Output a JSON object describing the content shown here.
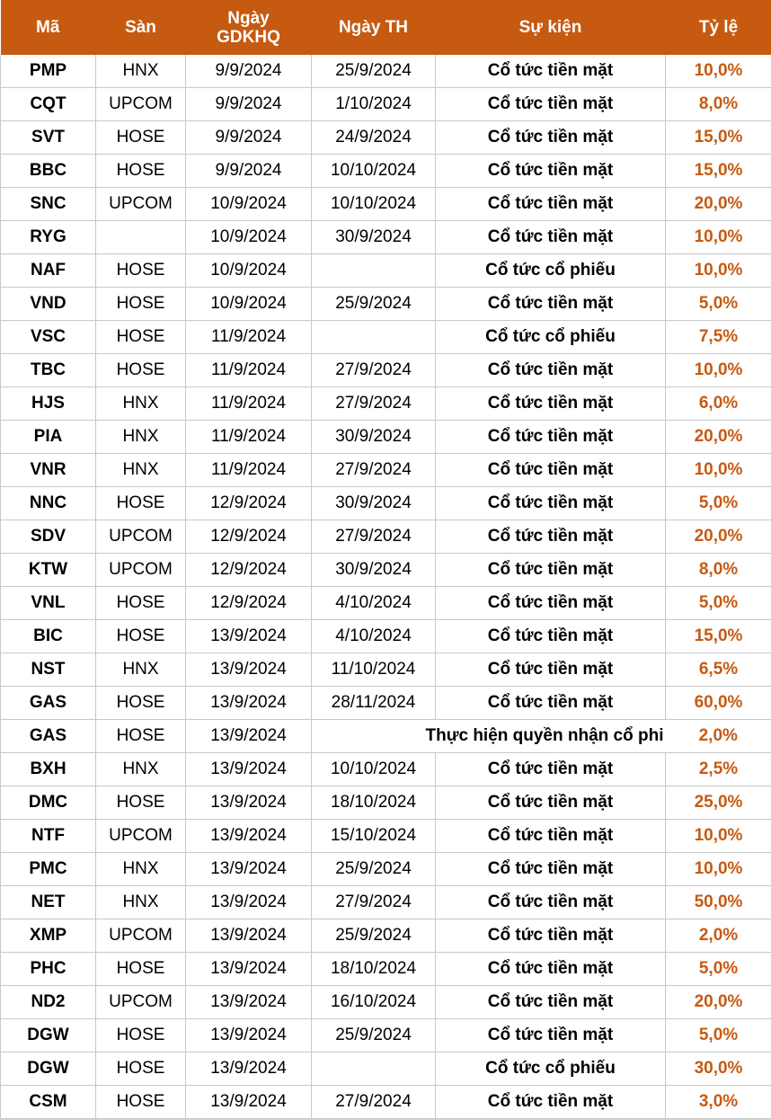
{
  "header": {
    "ma": "Mã",
    "san": "Sàn",
    "ngay_gdkhq_line1": "Ngày",
    "ngay_gdkhq_line2": "GDKHQ",
    "ngay_th": "Ngày TH",
    "su_kien": "Sự kiện",
    "ty_le": "Tỷ lệ"
  },
  "colors": {
    "header_bg": "#c65a11",
    "header_text": "#ffffff",
    "ratio_text": "#c65a11"
  },
  "rows": [
    {
      "ma": "PMP",
      "san": "HNX",
      "gdkhq": "9/9/2024",
      "th": "25/9/2024",
      "sukien": "Cổ tức tiền mặt",
      "tyle": "10,0%"
    },
    {
      "ma": "CQT",
      "san": "UPCOM",
      "gdkhq": "9/9/2024",
      "th": "1/10/2024",
      "sukien": "Cổ tức tiền mặt",
      "tyle": "8,0%"
    },
    {
      "ma": "SVT",
      "san": "HOSE",
      "gdkhq": "9/9/2024",
      "th": "24/9/2024",
      "sukien": "Cổ tức tiền mặt",
      "tyle": "15,0%"
    },
    {
      "ma": "BBC",
      "san": "HOSE",
      "gdkhq": "9/9/2024",
      "th": "10/10/2024",
      "sukien": "Cổ tức tiền mặt",
      "tyle": "15,0%"
    },
    {
      "ma": "SNC",
      "san": "UPCOM",
      "gdkhq": "10/9/2024",
      "th": "10/10/2024",
      "sukien": "Cổ tức tiền mặt",
      "tyle": "20,0%"
    },
    {
      "ma": "RYG",
      "san": "",
      "gdkhq": "10/9/2024",
      "th": "30/9/2024",
      "sukien": "Cổ tức tiền mặt",
      "tyle": "10,0%"
    },
    {
      "ma": "NAF",
      "san": "HOSE",
      "gdkhq": "10/9/2024",
      "th": "",
      "sukien": "Cổ tức cổ phiếu",
      "tyle": "10,0%"
    },
    {
      "ma": "VND",
      "san": "HOSE",
      "gdkhq": "10/9/2024",
      "th": "25/9/2024",
      "sukien": "Cổ tức tiền mặt",
      "tyle": "5,0%"
    },
    {
      "ma": "VSC",
      "san": "HOSE",
      "gdkhq": "11/9/2024",
      "th": "",
      "sukien": "Cổ tức cổ phiếu",
      "tyle": "7,5%"
    },
    {
      "ma": "TBC",
      "san": "HOSE",
      "gdkhq": "11/9/2024",
      "th": "27/9/2024",
      "sukien": "Cổ tức tiền mặt",
      "tyle": "10,0%"
    },
    {
      "ma": "HJS",
      "san": "HNX",
      "gdkhq": "11/9/2024",
      "th": "27/9/2024",
      "sukien": "Cổ tức tiền mặt",
      "tyle": "6,0%"
    },
    {
      "ma": "PIA",
      "san": "HNX",
      "gdkhq": "11/9/2024",
      "th": "30/9/2024",
      "sukien": "Cổ tức tiền mặt",
      "tyle": "20,0%"
    },
    {
      "ma": "VNR",
      "san": "HNX",
      "gdkhq": "11/9/2024",
      "th": "27/9/2024",
      "sukien": "Cổ tức tiền mặt",
      "tyle": "10,0%"
    },
    {
      "ma": "NNC",
      "san": "HOSE",
      "gdkhq": "12/9/2024",
      "th": "30/9/2024",
      "sukien": "Cổ tức tiền mặt",
      "tyle": "5,0%"
    },
    {
      "ma": "SDV",
      "san": "UPCOM",
      "gdkhq": "12/9/2024",
      "th": "27/9/2024",
      "sukien": "Cổ tức tiền mặt",
      "tyle": "20,0%"
    },
    {
      "ma": "KTW",
      "san": "UPCOM",
      "gdkhq": "12/9/2024",
      "th": "30/9/2024",
      "sukien": "Cổ tức tiền mặt",
      "tyle": "8,0%"
    },
    {
      "ma": "VNL",
      "san": "HOSE",
      "gdkhq": "12/9/2024",
      "th": "4/10/2024",
      "sukien": "Cổ tức tiền mặt",
      "tyle": "5,0%"
    },
    {
      "ma": "BIC",
      "san": "HOSE",
      "gdkhq": "13/9/2024",
      "th": "4/10/2024",
      "sukien": "Cổ tức tiền mặt",
      "tyle": "15,0%"
    },
    {
      "ma": "NST",
      "san": "HNX",
      "gdkhq": "13/9/2024",
      "th": "11/10/2024",
      "sukien": "Cổ tức tiền mặt",
      "tyle": "6,5%"
    },
    {
      "ma": "GAS",
      "san": "HOSE",
      "gdkhq": "13/9/2024",
      "th": "28/11/2024",
      "sukien": "Cổ tức tiền mặt",
      "tyle": "60,0%"
    },
    {
      "ma": "GAS",
      "san": "HOSE",
      "gdkhq": "13/9/2024",
      "th": "",
      "sukien": "Thực hiện quyền nhận cổ phi",
      "tyle": "2,0%",
      "overflow": true
    },
    {
      "ma": "BXH",
      "san": "HNX",
      "gdkhq": "13/9/2024",
      "th": "10/10/2024",
      "sukien": "Cổ tức tiền mặt",
      "tyle": "2,5%"
    },
    {
      "ma": "DMC",
      "san": "HOSE",
      "gdkhq": "13/9/2024",
      "th": "18/10/2024",
      "sukien": "Cổ tức tiền mặt",
      "tyle": "25,0%"
    },
    {
      "ma": "NTF",
      "san": "UPCOM",
      "gdkhq": "13/9/2024",
      "th": "15/10/2024",
      "sukien": "Cổ tức tiền mặt",
      "tyle": "10,0%"
    },
    {
      "ma": "PMC",
      "san": "HNX",
      "gdkhq": "13/9/2024",
      "th": "25/9/2024",
      "sukien": "Cổ tức tiền mặt",
      "tyle": "10,0%"
    },
    {
      "ma": "NET",
      "san": "HNX",
      "gdkhq": "13/9/2024",
      "th": "27/9/2024",
      "sukien": "Cổ tức tiền mặt",
      "tyle": "50,0%"
    },
    {
      "ma": "XMP",
      "san": "UPCOM",
      "gdkhq": "13/9/2024",
      "th": "25/9/2024",
      "sukien": "Cổ tức tiền mặt",
      "tyle": "2,0%"
    },
    {
      "ma": "PHC",
      "san": "HOSE",
      "gdkhq": "13/9/2024",
      "th": "18/10/2024",
      "sukien": "Cổ tức tiền mặt",
      "tyle": "5,0%"
    },
    {
      "ma": "ND2",
      "san": "UPCOM",
      "gdkhq": "13/9/2024",
      "th": "16/10/2024",
      "sukien": "Cổ tức tiền mặt",
      "tyle": "20,0%"
    },
    {
      "ma": "DGW",
      "san": "HOSE",
      "gdkhq": "13/9/2024",
      "th": "25/9/2024",
      "sukien": "Cổ tức tiền mặt",
      "tyle": "5,0%"
    },
    {
      "ma": "DGW",
      "san": "HOSE",
      "gdkhq": "13/9/2024",
      "th": "",
      "sukien": "Cổ tức cổ phiếu",
      "tyle": "30,0%"
    },
    {
      "ma": "CSM",
      "san": "HOSE",
      "gdkhq": "13/9/2024",
      "th": "27/9/2024",
      "sukien": "Cổ tức tiền mặt",
      "tyle": "3,0%"
    }
  ]
}
